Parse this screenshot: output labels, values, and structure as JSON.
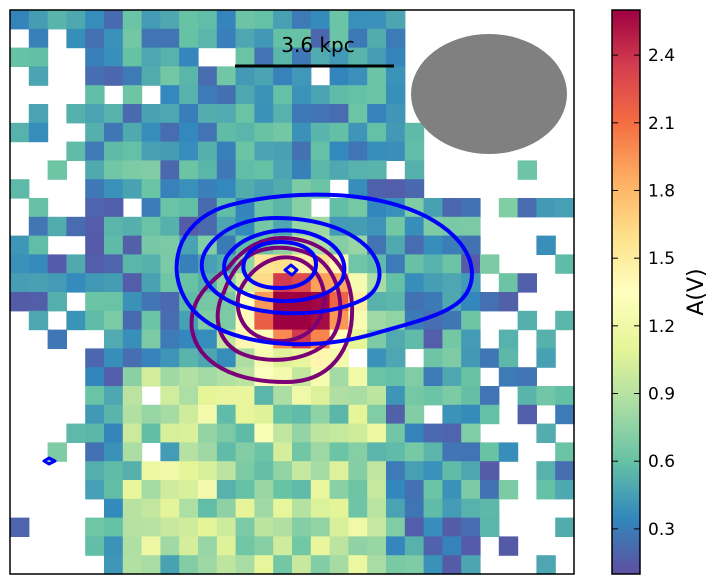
{
  "chart_data": {
    "type": "heatmap",
    "title": "",
    "xlabel": "",
    "ylabel": "",
    "scale_bar_label": "3.6 kpc",
    "colorbar": {
      "label": "A(V)",
      "vmin": 0.1,
      "vmax": 2.6,
      "ticks": [
        0.3,
        0.6,
        0.9,
        1.2,
        1.5,
        1.8,
        2.1,
        2.4
      ],
      "tick_labels": [
        "0.3",
        "0.6",
        "0.9",
        "1.2",
        "1.5",
        "1.8",
        "2.1",
        "2.4"
      ],
      "colormap": "Spectral_r"
    },
    "grid": {
      "cols": 30,
      "rows": 30
    },
    "peak_value": 2.6,
    "contour_series": [
      {
        "name": "blue contours",
        "color": "#0000ff",
        "levels": 4
      },
      {
        "name": "purple contours",
        "color": "#7a0078",
        "levels": 3
      }
    ],
    "beam_color": "#808080"
  }
}
